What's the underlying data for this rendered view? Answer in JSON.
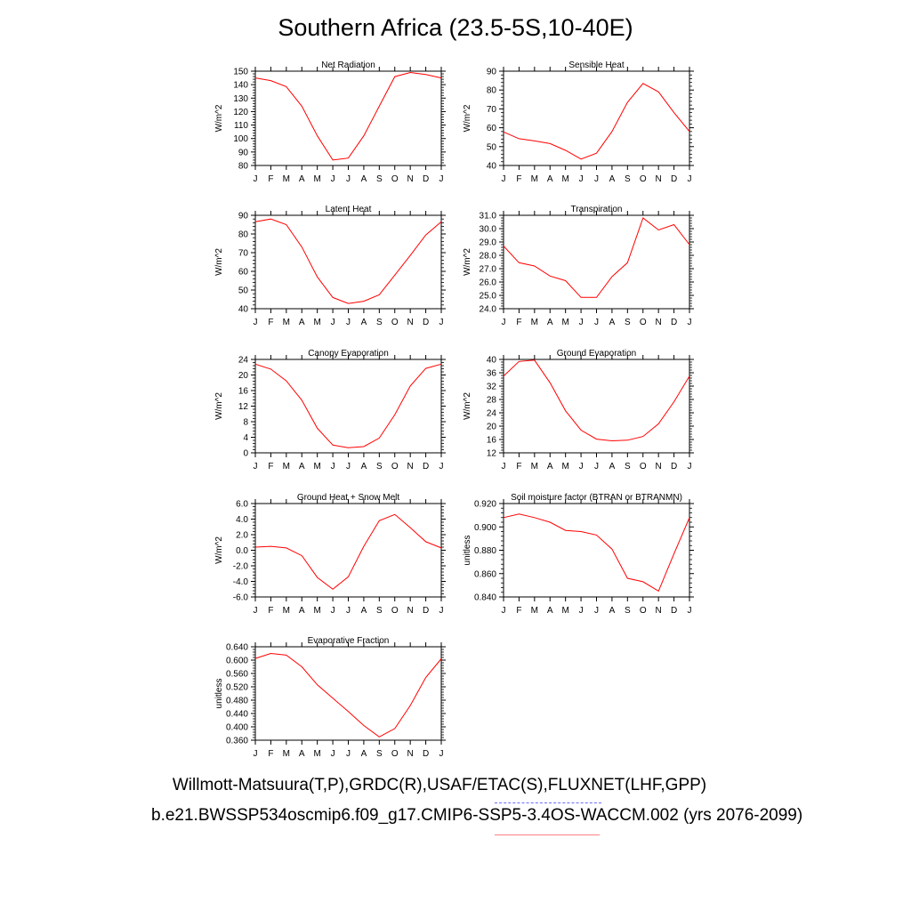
{
  "title": "Southern Africa (23.5-5S,10-40E)",
  "legend": {
    "obs_label": "Willmott-Matsuura(T,P),GRDC(R),USAF/ETAC(S),FLUXNET(LHF,GPP)",
    "model_label": "b.e21.BWSSP534oscmip6.f09_g17.CMIP6-SSP5-3.4OS-WACCM.002 (yrs 2076-2099)",
    "obs_color": "#6b6bff",
    "model_color": "#ff0000"
  },
  "chart_data": [
    {
      "type": "line",
      "title": "Net Radiation",
      "ylabel": "W/m^2",
      "categories": [
        "J",
        "F",
        "M",
        "A",
        "M",
        "J",
        "J",
        "A",
        "S",
        "O",
        "N",
        "D",
        "J"
      ],
      "yticks": [
        "80",
        "90",
        "100",
        "110",
        "120",
        "130",
        "140",
        "150"
      ],
      "ylim": [
        80,
        150
      ],
      "values": [
        145,
        143,
        138.5,
        124,
        102,
        84,
        85.5,
        102,
        124,
        146,
        149,
        147.5,
        145
      ]
    },
    {
      "type": "line",
      "title": "Sensible Heat",
      "ylabel": "W/m^2",
      "categories": [
        "J",
        "F",
        "M",
        "A",
        "M",
        "J",
        "J",
        "A",
        "S",
        "O",
        "N",
        "D",
        "J"
      ],
      "yticks": [
        "40",
        "50",
        "60",
        "70",
        "80",
        "90"
      ],
      "ylim": [
        40,
        90
      ],
      "values": [
        57.8,
        54.2,
        53,
        51.6,
        48,
        43.4,
        46.5,
        58,
        73.5,
        83.5,
        79,
        68,
        58
      ]
    },
    {
      "type": "line",
      "title": "Latent Heat",
      "ylabel": "W/m^2",
      "categories": [
        "J",
        "F",
        "M",
        "A",
        "M",
        "J",
        "J",
        "A",
        "S",
        "O",
        "N",
        "D",
        "J"
      ],
      "yticks": [
        "40",
        "50",
        "60",
        "70",
        "80",
        "90"
      ],
      "ylim": [
        40,
        90
      ],
      "values": [
        86.5,
        88,
        85,
        73,
        57,
        46,
        42.8,
        44,
        47.5,
        58,
        68.5,
        79.5,
        86.5
      ]
    },
    {
      "type": "line",
      "title": "Transpiration",
      "ylabel": "W/m^2",
      "categories": [
        "J",
        "F",
        "M",
        "A",
        "M",
        "J",
        "J",
        "A",
        "S",
        "O",
        "N",
        "D",
        "J"
      ],
      "yticks": [
        "24.0",
        "25.0",
        "26.0",
        "27.0",
        "28.0",
        "29.0",
        "30.0",
        "31.0"
      ],
      "ylim": [
        24,
        31
      ],
      "values": [
        28.7,
        27.45,
        27.2,
        26.45,
        26.1,
        24.85,
        24.85,
        26.4,
        27.45,
        30.8,
        29.9,
        30.3,
        28.8
      ]
    },
    {
      "type": "line",
      "title": "Canopy Evaporation",
      "ylabel": "W/m^2",
      "categories": [
        "J",
        "F",
        "M",
        "A",
        "M",
        "J",
        "J",
        "A",
        "S",
        "O",
        "N",
        "D",
        "J"
      ],
      "yticks": [
        "0",
        "4",
        "8",
        "12",
        "16",
        "20",
        "24"
      ],
      "ylim": [
        0,
        24
      ],
      "values": [
        22.8,
        21.5,
        18.5,
        13.5,
        6.3,
        2,
        1.3,
        1.6,
        3.8,
        9.8,
        17.2,
        21.7,
        22.8
      ]
    },
    {
      "type": "line",
      "title": "Ground Evaporation",
      "ylabel": "W/m^2",
      "categories": [
        "J",
        "F",
        "M",
        "A",
        "M",
        "J",
        "J",
        "A",
        "S",
        "O",
        "N",
        "D",
        "J"
      ],
      "yticks": [
        "12",
        "16",
        "20",
        "24",
        "28",
        "32",
        "36",
        "40"
      ],
      "ylim": [
        12,
        40
      ],
      "values": [
        35,
        39.4,
        39.8,
        33,
        24.6,
        18.8,
        16.1,
        15.6,
        15.8,
        16.9,
        20.7,
        27.3,
        35
      ]
    },
    {
      "type": "line",
      "title": "Ground Heat + Snow Melt",
      "ylabel": "W/m^2",
      "categories": [
        "J",
        "F",
        "M",
        "A",
        "M",
        "J",
        "J",
        "A",
        "S",
        "O",
        "N",
        "D",
        "J"
      ],
      "yticks": [
        "-6.0",
        "-4.0",
        "-2.0",
        "0.0",
        "2.0",
        "4.0",
        "6.0"
      ],
      "ylim": [
        -6,
        6
      ],
      "values": [
        0.4,
        0.5,
        0.3,
        -0.7,
        -3.5,
        -5.0,
        -3.4,
        0.5,
        3.8,
        4.6,
        2.9,
        1.1,
        0.3
      ]
    },
    {
      "type": "line",
      "title": "Soil moisture factor (BTRAN or BTRANMN)",
      "ylabel": "unitless",
      "categories": [
        "J",
        "F",
        "M",
        "A",
        "M",
        "J",
        "J",
        "A",
        "S",
        "O",
        "N",
        "D",
        "J"
      ],
      "yticks": [
        "0.840",
        "0.860",
        "0.880",
        "0.900",
        "0.920"
      ],
      "ylim": [
        0.84,
        0.92
      ],
      "values": [
        0.908,
        0.911,
        0.908,
        0.904,
        0.897,
        0.896,
        0.893,
        0.881,
        0.856,
        0.853,
        0.845,
        0.877,
        0.908
      ]
    },
    {
      "type": "line",
      "title": "Evaporative Fraction",
      "ylabel": "unitless",
      "categories": [
        "J",
        "F",
        "M",
        "A",
        "M",
        "J",
        "J",
        "A",
        "S",
        "O",
        "N",
        "D",
        "J"
      ],
      "yticks": [
        "0.360",
        "0.400",
        "0.440",
        "0.480",
        "0.520",
        "0.560",
        "0.600",
        "0.640"
      ],
      "ylim": [
        0.36,
        0.64
      ],
      "values": [
        0.605,
        0.62,
        0.615,
        0.58,
        0.526,
        0.486,
        0.446,
        0.404,
        0.37,
        0.395,
        0.464,
        0.548,
        0.604
      ]
    }
  ]
}
